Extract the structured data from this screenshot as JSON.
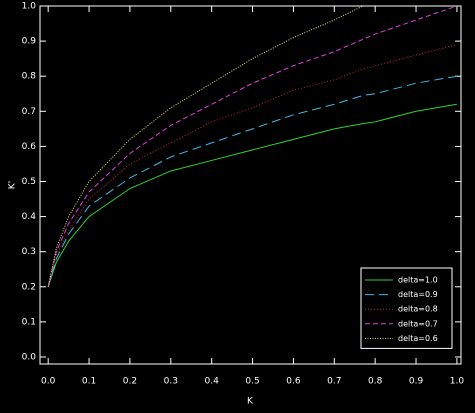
{
  "chart_data": {
    "type": "line",
    "x_label": "K",
    "y_label": "K'",
    "x": [
      0,
      0.02,
      0.05,
      0.1,
      0.2,
      0.3,
      0.4,
      0.5,
      0.6,
      0.7,
      0.77,
      0.8,
      0.9,
      1.0
    ],
    "series": [
      {
        "name": "delta=1.0",
        "color": "#30d030",
        "dash": "none",
        "values": [
          0.2,
          0.27,
          0.33,
          0.4,
          0.48,
          0.53,
          0.56,
          0.59,
          0.62,
          0.65,
          0.665,
          0.67,
          0.7,
          0.72
        ]
      },
      {
        "name": "delta=0.9",
        "color": "#40b8e8",
        "dash": "9 5",
        "values": [
          0.2,
          0.28,
          0.35,
          0.43,
          0.51,
          0.57,
          0.61,
          0.65,
          0.69,
          0.72,
          0.745,
          0.75,
          0.78,
          0.8
        ]
      },
      {
        "name": "delta=0.8",
        "color": "#c82828",
        "dash": "1 2",
        "values": [
          0.2,
          0.29,
          0.36,
          0.45,
          0.55,
          0.61,
          0.67,
          0.71,
          0.76,
          0.79,
          0.82,
          0.83,
          0.86,
          0.89
        ]
      },
      {
        "name": "delta=0.7",
        "color": "#e040e0",
        "dash": "5 3",
        "values": [
          0.2,
          0.3,
          0.38,
          0.47,
          0.58,
          0.66,
          0.72,
          0.78,
          0.83,
          0.87,
          0.905,
          0.92,
          0.96,
          1.0
        ]
      },
      {
        "name": "delta=0.6",
        "color": "#e8e870",
        "dash": "1 1.5",
        "values": [
          0.2,
          0.31,
          0.4,
          0.5,
          0.62,
          0.71,
          0.78,
          0.85,
          0.91,
          0.96,
          1.0,
          null,
          null,
          null
        ]
      }
    ],
    "xlim": [
      -0.02,
      1.01
    ],
    "ylim": [
      -0.02,
      1.0
    ],
    "xticks": [
      {
        "value": 0,
        "label": "0.0"
      },
      0.1,
      0.2,
      0.3,
      0.4,
      0.5,
      0.6,
      0.7,
      0.8,
      0.9,
      {
        "value": 1,
        "label": "1.0"
      }
    ],
    "yticks": [
      {
        "value": 0,
        "label": "0.0"
      },
      0.1,
      0.2,
      0.3,
      0.4,
      0.5,
      0.6,
      0.7,
      0.8,
      0.9,
      {
        "value": 1,
        "label": "1.0"
      }
    ],
    "legend": "lower right"
  }
}
